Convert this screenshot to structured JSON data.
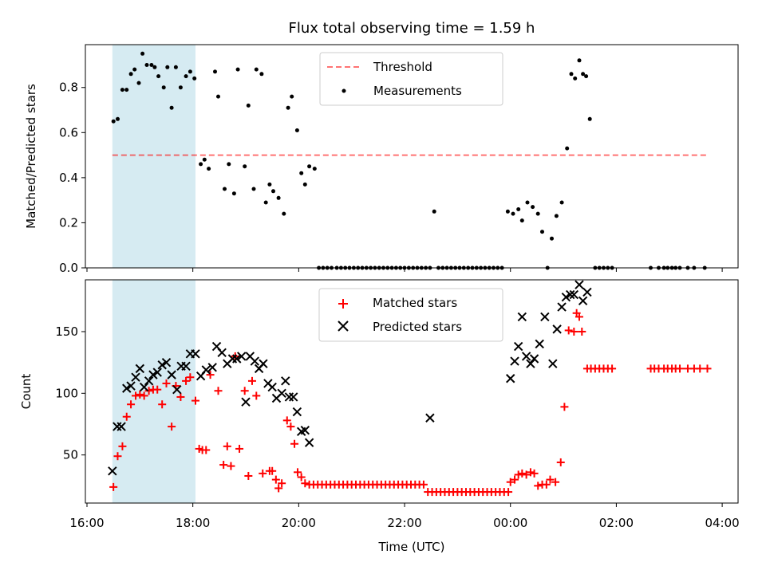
{
  "colors": {
    "highlight": "#add8e6",
    "threshold": "#ff0000",
    "measurements": "#000000",
    "matched": "#ff0000",
    "predicted": "#000000",
    "axes": "#000000"
  },
  "chart_data": [
    {
      "type": "scatter",
      "title": "Flux total observing time = 1.59 h",
      "xlabel": "",
      "ylabel": "Matched/Predicted stars",
      "xlim_hours": [
        15.97,
        28.3
      ],
      "ylim": [
        0,
        0.99
      ],
      "yticks": [
        0.0,
        0.2,
        0.4,
        0.6,
        0.8
      ],
      "ytick_labels": [
        "0.0",
        "0.2",
        "0.4",
        "0.6",
        "0.8"
      ],
      "legend_position": "upper-center",
      "highlight_span_hours": [
        16.48,
        18.05
      ],
      "threshold": {
        "name": "Threshold",
        "y": 0.5,
        "x_hours": [
          16.48,
          27.7
        ],
        "style": "dashed"
      },
      "series": [
        {
          "name": "Measurements",
          "x": [
            16.5,
            16.58,
            16.67,
            16.75,
            16.83,
            16.9,
            16.98,
            17.05,
            17.13,
            17.22,
            17.28,
            17.35,
            17.45,
            17.52,
            17.6,
            17.68,
            17.77,
            17.87,
            17.95,
            18.03,
            18.15,
            18.22,
            18.3,
            18.42,
            18.48,
            18.6,
            18.68,
            18.78,
            18.85,
            18.98,
            19.05,
            19.15,
            19.2,
            19.3,
            19.38,
            19.45,
            19.52,
            19.62,
            19.72,
            19.8,
            19.87,
            19.97,
            20.05,
            20.12,
            20.2,
            20.3,
            20.38,
            20.46,
            20.54,
            20.62,
            20.72,
            20.8,
            20.88,
            20.96,
            21.04,
            21.12,
            21.2,
            21.28,
            21.36,
            21.44,
            21.52,
            21.6,
            21.68,
            21.76,
            21.84,
            21.92,
            22.0,
            22.08,
            22.16,
            22.24,
            22.32,
            22.4,
            22.48,
            22.56,
            22.64,
            22.72,
            22.8,
            22.88,
            22.96,
            23.04,
            23.12,
            23.2,
            23.28,
            23.36,
            23.44,
            23.52,
            23.6,
            23.68,
            23.76,
            23.84,
            23.95,
            24.05,
            24.15,
            24.22,
            24.32,
            24.42,
            24.52,
            24.6,
            24.7,
            24.78,
            24.87,
            24.97,
            25.07,
            25.15,
            25.22,
            25.3,
            25.37,
            25.43,
            25.5,
            25.6,
            25.68,
            25.76,
            25.84,
            25.92,
            26.65,
            26.8,
            26.9,
            26.97,
            27.05,
            27.12,
            27.2,
            27.35,
            27.47,
            27.67
          ],
          "y": [
            0.65,
            0.66,
            0.79,
            0.79,
            0.86,
            0.88,
            0.82,
            0.95,
            0.9,
            0.9,
            0.89,
            0.85,
            0.8,
            0.89,
            0.71,
            0.89,
            0.8,
            0.85,
            0.87,
            0.84,
            0.46,
            0.48,
            0.44,
            0.87,
            0.76,
            0.35,
            0.46,
            0.33,
            0.88,
            0.45,
            0.72,
            0.35,
            0.88,
            0.86,
            0.29,
            0.37,
            0.34,
            0.31,
            0.24,
            0.71,
            0.76,
            0.61,
            0.42,
            0.37,
            0.45,
            0.44,
            0.0,
            0.0,
            0.0,
            0.0,
            0.0,
            0.0,
            0.0,
            0.0,
            0.0,
            0.0,
            0.0,
            0.0,
            0.0,
            0.0,
            0.0,
            0.0,
            0.0,
            0.0,
            0.0,
            0.0,
            0.0,
            0.0,
            0.0,
            0.0,
            0.0,
            0.0,
            0.0,
            0.25,
            0.0,
            0.0,
            0.0,
            0.0,
            0.0,
            0.0,
            0.0,
            0.0,
            0.0,
            0.0,
            0.0,
            0.0,
            0.0,
            0.0,
            0.0,
            0.0,
            0.25,
            0.24,
            0.26,
            0.21,
            0.29,
            0.27,
            0.24,
            0.16,
            0.0,
            0.13,
            0.23,
            0.29,
            0.53,
            0.86,
            0.84,
            0.92,
            0.86,
            0.85,
            0.66,
            0.0,
            0.0,
            0.0,
            0.0,
            0.0,
            0.0,
            0.0,
            0.0,
            0.0,
            0.0,
            0.0,
            0.0,
            0.0,
            0.0,
            0.0
          ]
        }
      ]
    },
    {
      "type": "scatter",
      "title": "",
      "xlabel": "Time (UTC)",
      "ylabel": "Count",
      "xlim_hours": [
        15.97,
        28.3
      ],
      "ylim": [
        11,
        192
      ],
      "yticks": [
        50,
        100,
        150
      ],
      "ytick_labels": [
        "50",
        "100",
        "150"
      ],
      "xticks_hours": [
        16,
        18,
        20,
        22,
        24,
        26,
        28
      ],
      "xtick_labels": [
        "16:00",
        "18:00",
        "20:00",
        "22:00",
        "00:00",
        "02:00",
        "04:00"
      ],
      "legend_position": "upper-center",
      "highlight_span_hours": [
        16.48,
        18.05
      ],
      "series": [
        {
          "name": "Matched stars",
          "marker": "plus",
          "x": [
            16.5,
            16.58,
            16.67,
            16.75,
            16.83,
            16.92,
            17.0,
            17.08,
            17.17,
            17.25,
            17.33,
            17.42,
            17.5,
            17.6,
            17.68,
            17.77,
            17.87,
            17.95,
            18.05,
            18.12,
            18.18,
            18.25,
            18.33,
            18.48,
            18.58,
            18.65,
            18.72,
            18.8,
            18.88,
            18.98,
            19.05,
            19.12,
            19.2,
            19.32,
            19.45,
            19.5,
            19.57,
            19.62,
            19.68,
            19.78,
            19.85,
            19.92,
            19.98,
            20.05,
            20.12,
            20.2,
            20.28,
            20.36,
            20.44,
            20.52,
            20.6,
            20.68,
            20.76,
            20.84,
            20.92,
            21.0,
            21.08,
            21.16,
            21.24,
            21.32,
            21.4,
            21.48,
            21.56,
            21.64,
            21.72,
            21.8,
            21.88,
            21.96,
            22.04,
            22.12,
            22.2,
            22.28,
            22.36,
            22.44,
            22.52,
            22.6,
            22.68,
            22.76,
            22.84,
            22.92,
            23.0,
            23.08,
            23.16,
            23.24,
            23.32,
            23.4,
            23.48,
            23.56,
            23.64,
            23.72,
            23.8,
            23.88,
            23.96,
            24.0,
            24.08,
            24.15,
            24.22,
            24.3,
            24.38,
            24.45,
            24.52,
            24.6,
            24.68,
            24.75,
            24.85,
            24.95,
            25.02,
            25.1,
            25.2,
            25.25,
            25.3,
            25.35,
            25.45,
            25.52,
            25.6,
            25.68,
            25.76,
            25.84,
            25.92,
            26.65,
            26.72,
            26.8,
            26.9,
            26.97,
            27.05,
            27.12,
            27.2,
            27.35,
            27.47,
            27.58,
            27.72
          ],
          "y": [
            24,
            49,
            57,
            81,
            91,
            98,
            99,
            98,
            102,
            103,
            103,
            91,
            108,
            73,
            106,
            97,
            110,
            113,
            94,
            55,
            54,
            54,
            115,
            102,
            42,
            57,
            41,
            130,
            55,
            102,
            33,
            110,
            98,
            35,
            37,
            37,
            30,
            23,
            27,
            78,
            73,
            59,
            36,
            32,
            27,
            26,
            26,
            26,
            26,
            26,
            26,
            26,
            26,
            26,
            26,
            26,
            26,
            26,
            26,
            26,
            26,
            26,
            26,
            26,
            26,
            26,
            26,
            26,
            26,
            26,
            26,
            26,
            26,
            20,
            20,
            20,
            20,
            20,
            20,
            20,
            20,
            20,
            20,
            20,
            20,
            20,
            20,
            20,
            20,
            20,
            20,
            20,
            20,
            28,
            30,
            34,
            35,
            34,
            36,
            35,
            25,
            26,
            26,
            30,
            28,
            44,
            89,
            151,
            150,
            165,
            162,
            150,
            120,
            120,
            120,
            120,
            120,
            120,
            120,
            120,
            120,
            120,
            120,
            120,
            120,
            120,
            120,
            120,
            120,
            120,
            120
          ]
        },
        {
          "name": "Predicted stars",
          "marker": "x",
          "x": [
            16.48,
            16.57,
            16.65,
            16.75,
            16.83,
            16.92,
            17.0,
            17.08,
            17.17,
            17.25,
            17.33,
            17.42,
            17.5,
            17.6,
            17.7,
            17.78,
            17.87,
            17.95,
            18.05,
            18.15,
            18.25,
            18.37,
            18.45,
            18.55,
            18.65,
            18.75,
            18.83,
            18.92,
            19.0,
            19.08,
            19.17,
            19.25,
            19.33,
            19.42,
            19.5,
            19.58,
            19.68,
            19.75,
            19.82,
            19.9,
            19.97,
            20.05,
            20.12,
            20.2,
            22.48,
            24.0,
            24.08,
            24.15,
            24.22,
            24.3,
            24.38,
            24.45,
            24.55,
            24.65,
            24.8,
            24.88,
            24.97,
            25.05,
            25.13,
            25.2,
            25.3,
            25.37,
            25.45
          ],
          "y": [
            37,
            73,
            73,
            104,
            106,
            113,
            120,
            105,
            110,
            115,
            117,
            123,
            125,
            115,
            103,
            122,
            122,
            132,
            132,
            114,
            119,
            121,
            138,
            133,
            124,
            128,
            128,
            130,
            93,
            130,
            126,
            120,
            124,
            108,
            105,
            96,
            100,
            110,
            97,
            97,
            85,
            69,
            70,
            60,
            80,
            112,
            126,
            138,
            162,
            130,
            124,
            128,
            140,
            162,
            124,
            152,
            170,
            178,
            180,
            180,
            188,
            175,
            182
          ]
        }
      ]
    }
  ]
}
